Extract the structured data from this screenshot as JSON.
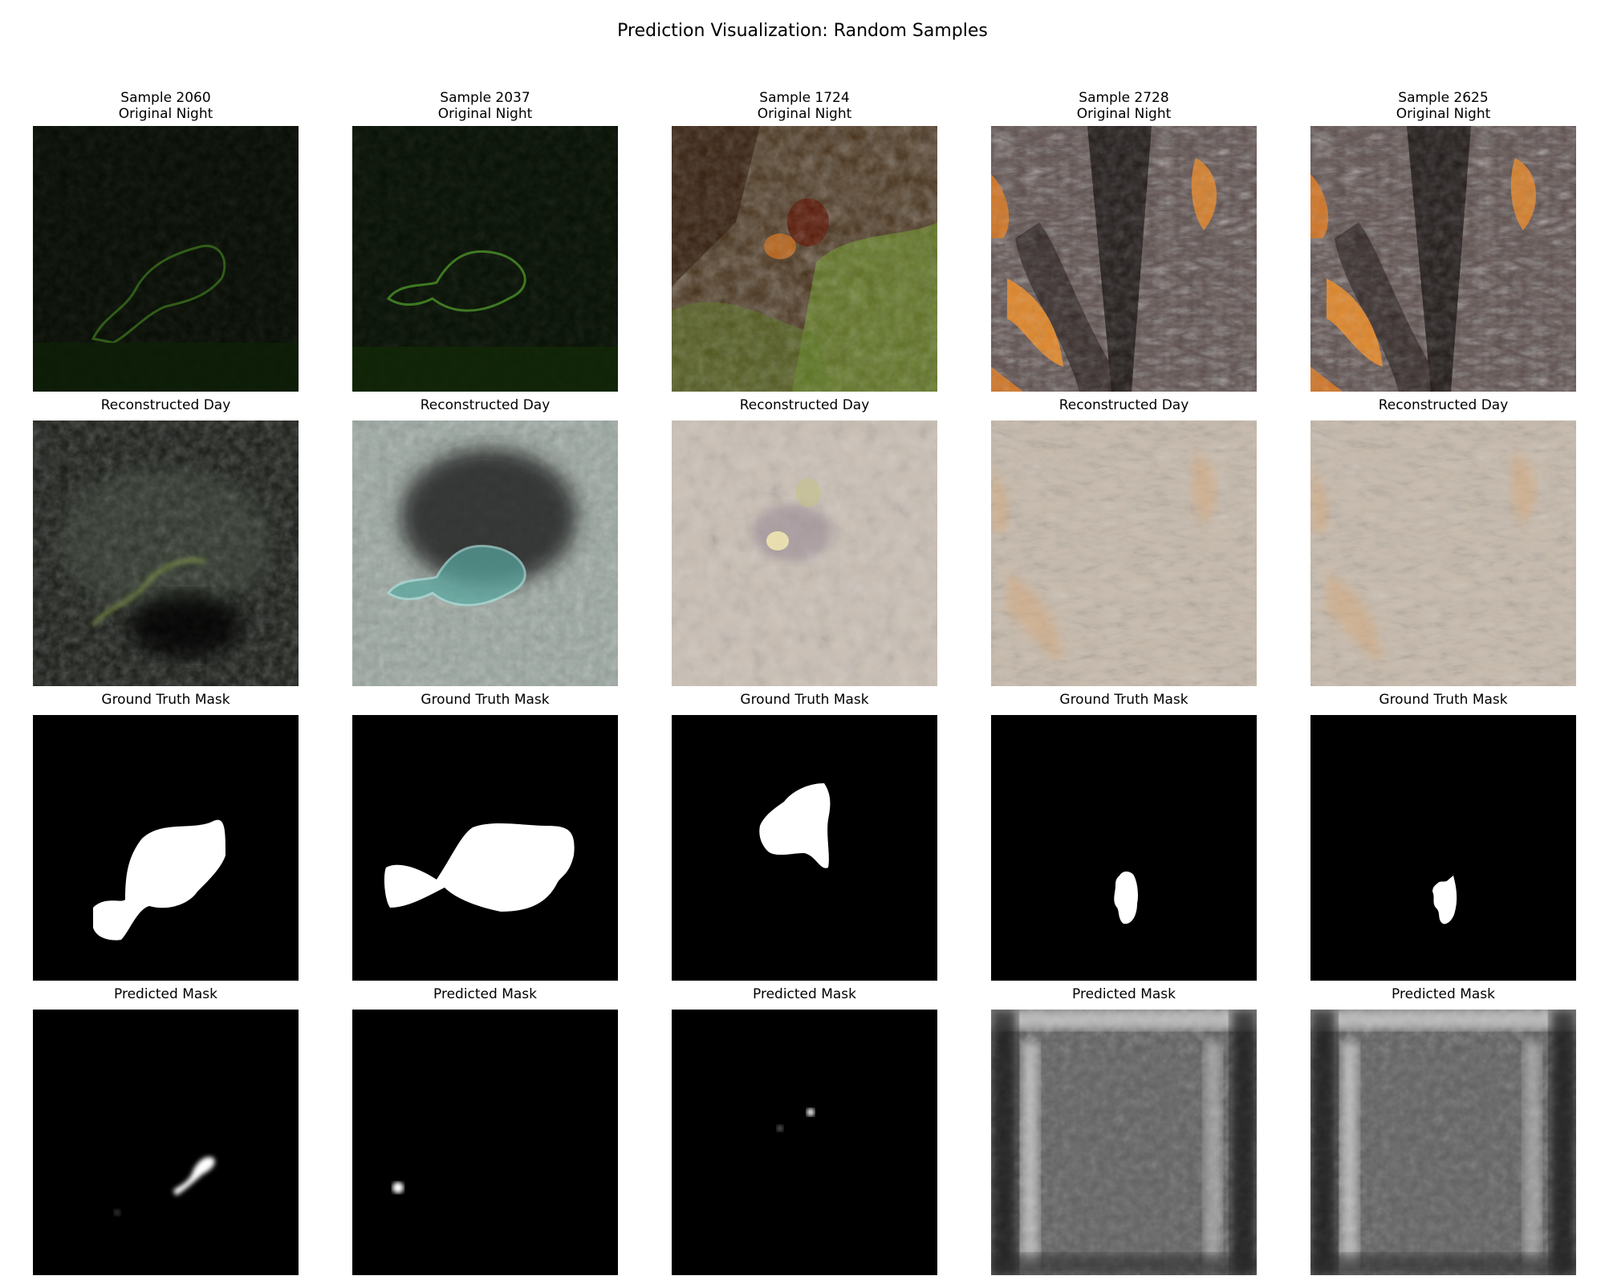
{
  "figure": {
    "title": "Prediction Visualization: Random Samples"
  },
  "row_titles": {
    "original": "Original Night",
    "reconstructed": "Reconstructed Day",
    "ground_truth": "Ground Truth Mask",
    "predicted": "Predicted Mask"
  },
  "samples": [
    {
      "label": "Sample 2060",
      "night_scene": "dark-green-flatfish",
      "day_scene": "dark-noisy-fish",
      "gt_shape": "fish-large",
      "pred_shape": "thin-streak"
    },
    {
      "label": "Sample 2037",
      "night_scene": "dark-green-flatfish-outline",
      "day_scene": "teal-flatfish",
      "gt_shape": "fish-wide",
      "pred_shape": "small-dot"
    },
    {
      "label": "Sample 1724",
      "night_scene": "green-brown-reef",
      "day_scene": "beige-reef",
      "gt_shape": "blob-upper",
      "pred_shape": "faint-dots"
    },
    {
      "label": "Sample 2728",
      "night_scene": "rock-crevice-orange",
      "day_scene": "beige-rock",
      "gt_shape": "blob-small",
      "pred_shape": "gray-frame"
    },
    {
      "label": "Sample 2625",
      "night_scene": "rock-crevice-orange",
      "day_scene": "beige-rock",
      "gt_shape": "blob-small-2",
      "pred_shape": "gray-frame"
    }
  ],
  "colors": {
    "mask_foreground": "#ffffff",
    "mask_background": "#000000",
    "night_dark": "#050a03",
    "night_green": "#5a9a2a",
    "reef_brown": "#4a2a10",
    "rock_orange": "#e07a1c",
    "day_beige": "#cdc2b4"
  }
}
